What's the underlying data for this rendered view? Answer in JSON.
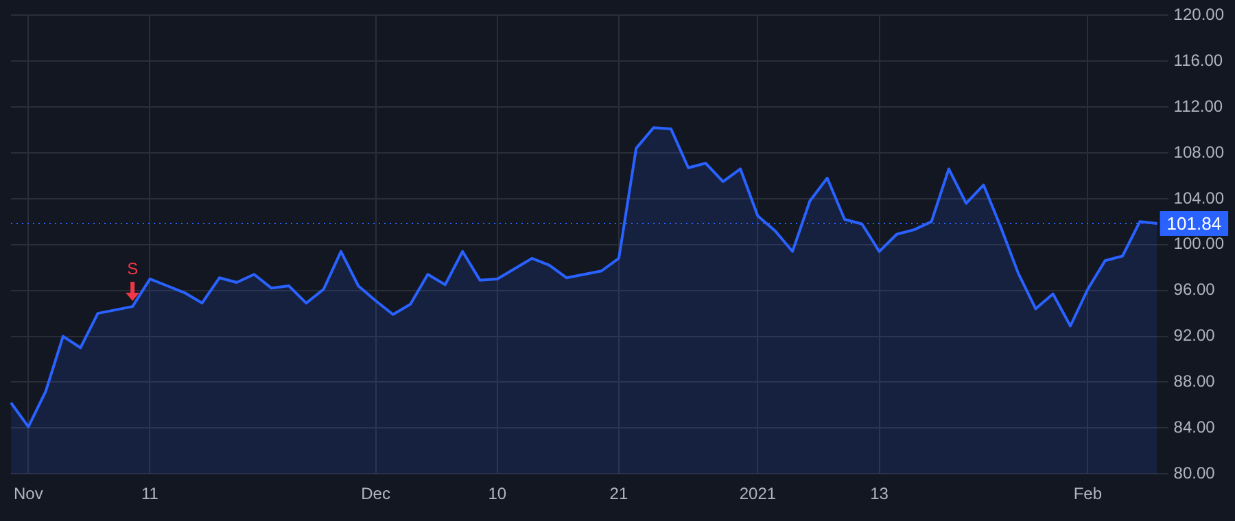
{
  "chart_data": {
    "type": "area",
    "categories": [
      null,
      "Nov",
      null,
      null,
      null,
      null,
      null,
      null,
      "11",
      null,
      null,
      null,
      null,
      null,
      null,
      null,
      null,
      null,
      null,
      null,
      null,
      "Dec",
      null,
      null,
      null,
      null,
      null,
      null,
      "10",
      null,
      null,
      null,
      null,
      null,
      null,
      "21",
      null,
      null,
      null,
      null,
      null,
      null,
      null,
      "2021",
      null,
      null,
      null,
      null,
      null,
      null,
      "13",
      null,
      null,
      null,
      null,
      null,
      null,
      null,
      null,
      null,
      null,
      null,
      "Feb",
      null,
      null,
      null,
      null
    ],
    "series": [
      {
        "color": "#2962ff",
        "values": [
          86.2,
          84.1,
          87.2,
          92.0,
          91.0,
          94.0,
          94.3,
          94.6,
          97.0,
          96.4,
          95.8,
          94.9,
          97.1,
          96.7,
          97.4,
          96.2,
          96.4,
          94.9,
          96.1,
          99.4,
          96.4,
          95.1,
          93.9,
          94.8,
          97.4,
          96.5,
          99.4,
          96.9,
          97.0,
          97.9,
          98.8,
          98.2,
          97.1,
          97.4,
          97.7,
          98.8,
          108.4,
          110.2,
          110.1,
          106.7,
          107.1,
          105.5,
          106.6,
          102.5,
          101.2,
          99.4,
          103.8,
          105.8,
          102.2,
          101.8,
          99.4,
          100.9,
          101.3,
          102.0,
          106.6,
          103.6,
          105.2,
          101.5,
          97.5,
          94.4,
          95.7,
          92.9,
          96.1,
          98.6,
          99.0,
          102.0,
          101.84
        ]
      }
    ],
    "ylim": [
      80,
      120
    ],
    "yticks": [
      {
        "value": 80,
        "label": "80.00"
      },
      {
        "value": 84,
        "label": "84.00"
      },
      {
        "value": 88,
        "label": "88.00"
      },
      {
        "value": 92,
        "label": "92.00"
      },
      {
        "value": 96,
        "label": "96.00"
      },
      {
        "value": 100,
        "label": "100.00"
      },
      {
        "value": 104,
        "label": "104.00"
      },
      {
        "value": 108,
        "label": "108.00"
      },
      {
        "value": 112,
        "label": "112.00"
      },
      {
        "value": 116,
        "label": "116.00"
      },
      {
        "value": 120,
        "label": "120.00"
      }
    ],
    "ref_lines": [
      {
        "axis": "y",
        "value": 101.84,
        "label": "101.84",
        "color": "#2962ff",
        "line_style": "dotted"
      }
    ],
    "annotations": [
      {
        "text": "S",
        "y": 94.6
      }
    ],
    "grid": true,
    "legend": false,
    "marker": "none"
  }
}
